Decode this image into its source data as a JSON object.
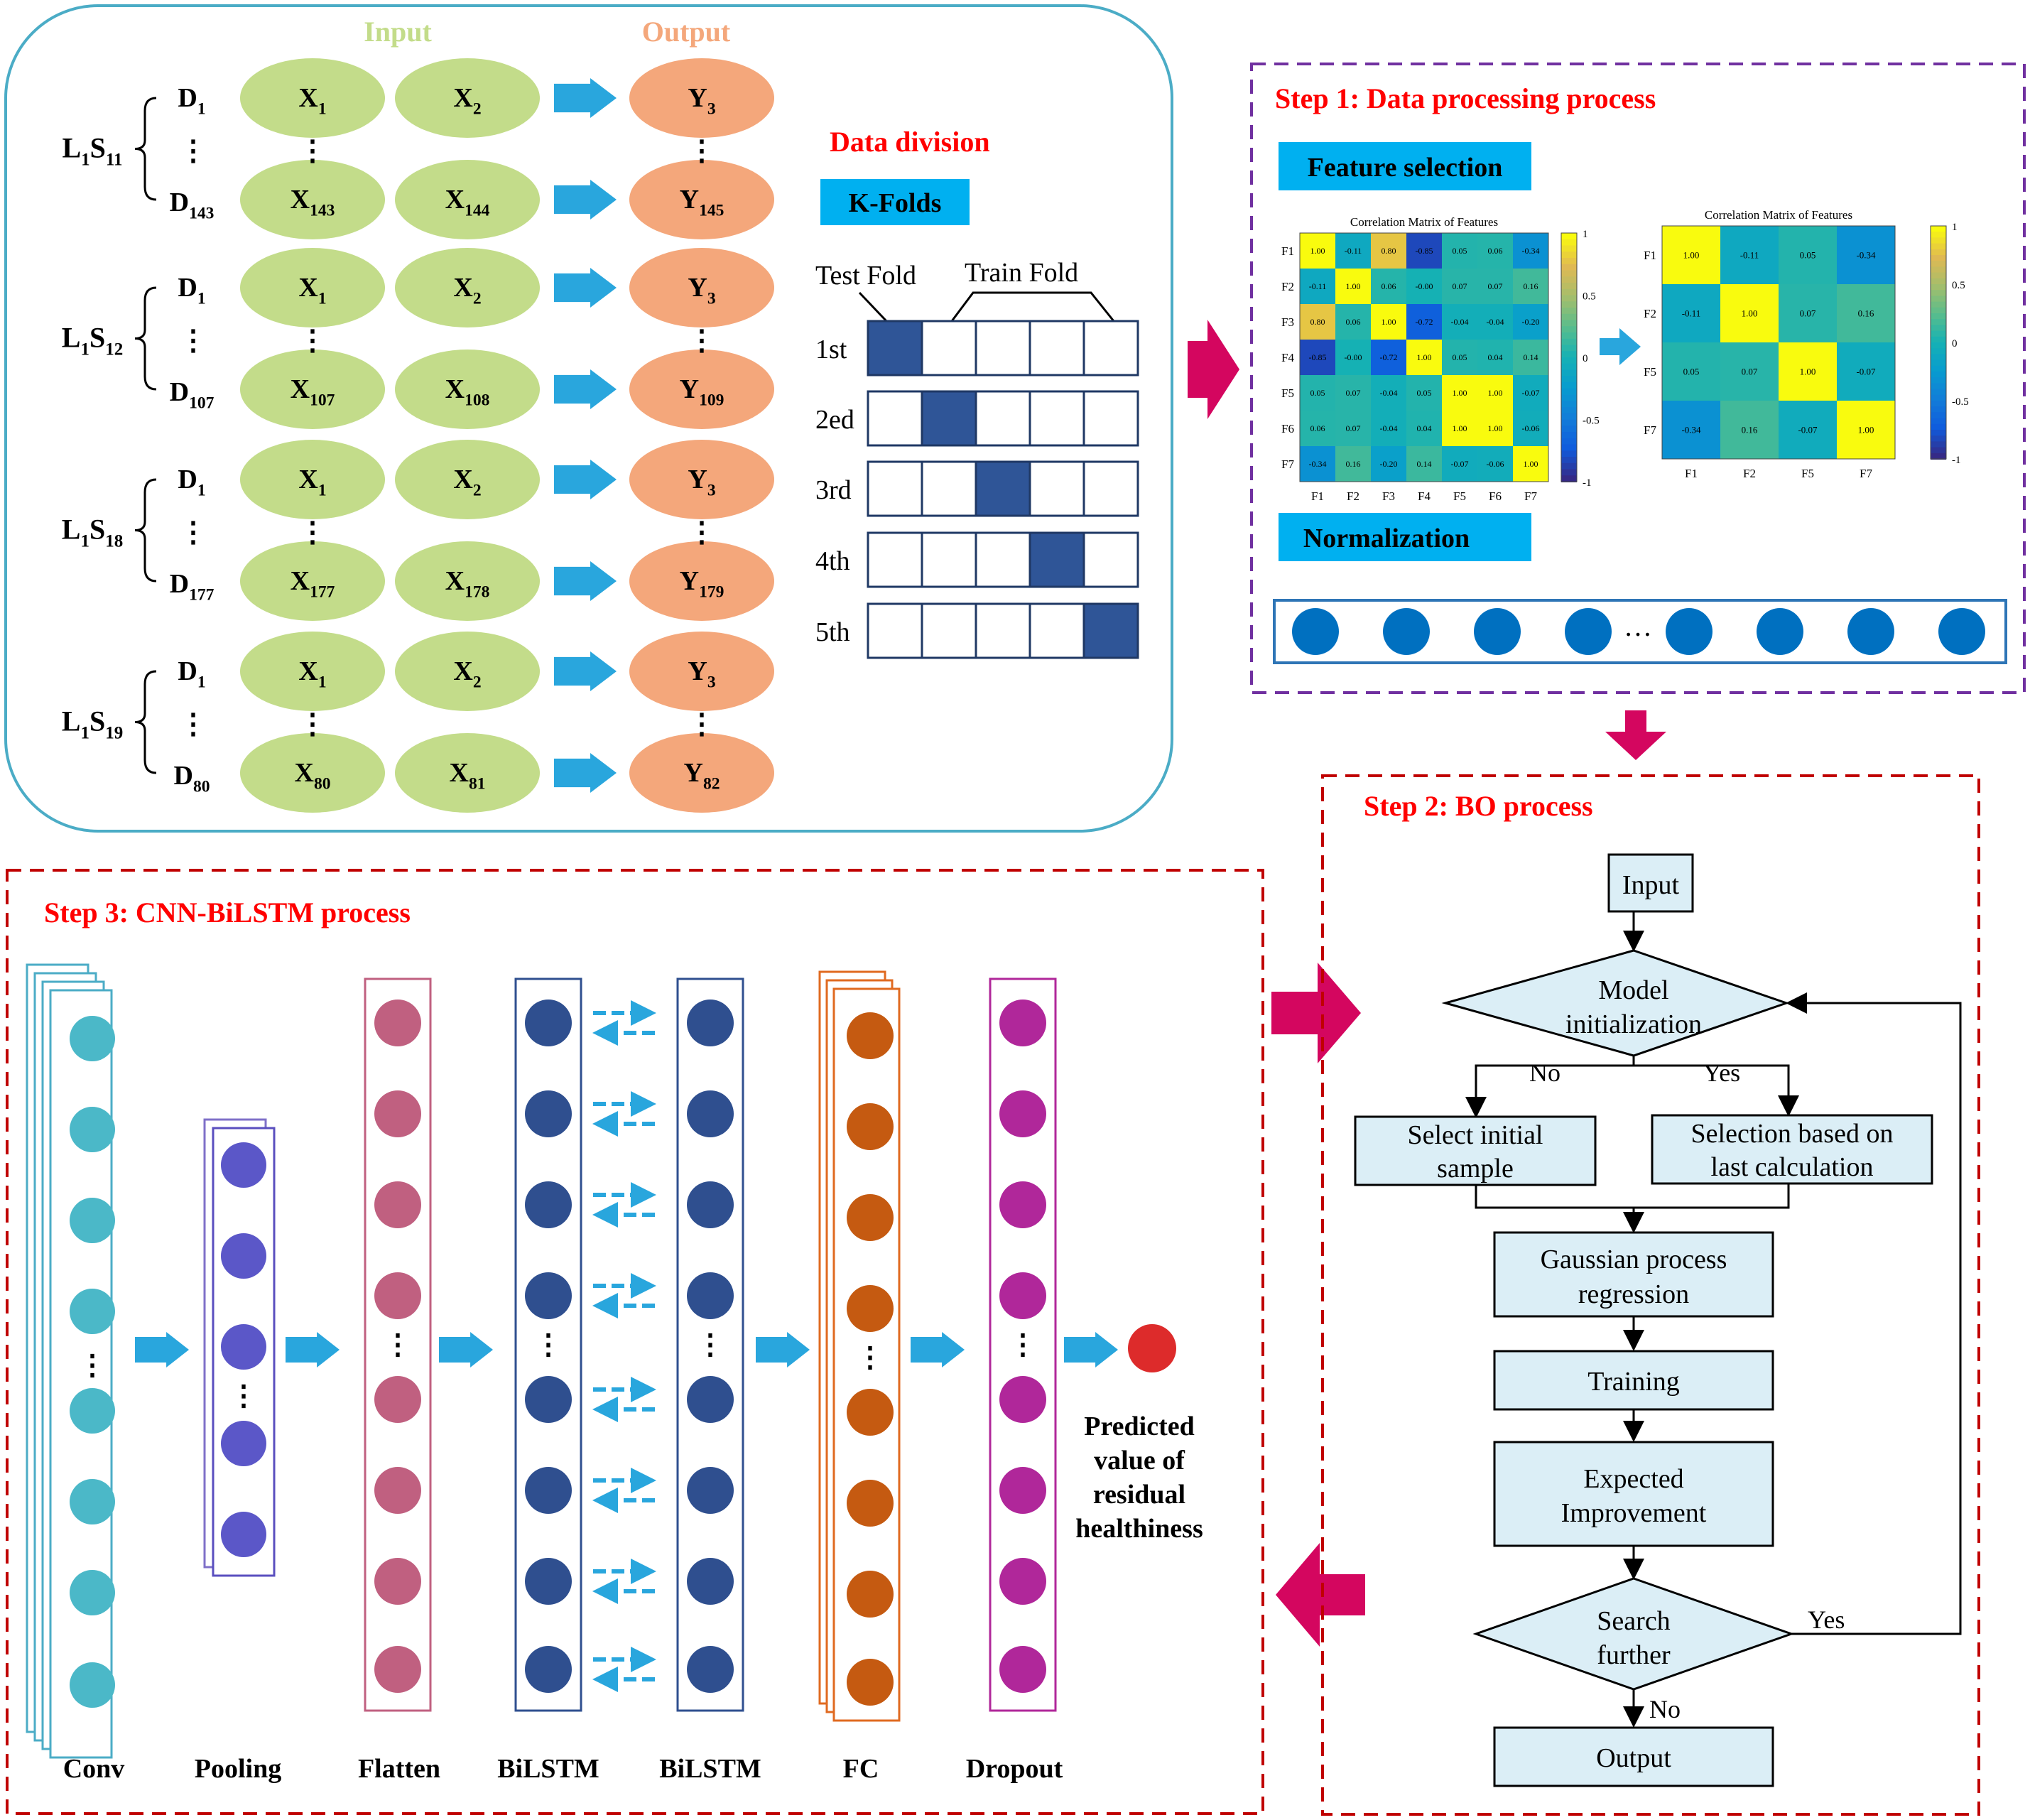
{
  "dataset": {
    "input_header": "Input",
    "output_header": "Output",
    "groups": [
      {
        "label": "L",
        "label_sub": "1",
        "label2": "S",
        "label2_sub": "11",
        "d_first": "D",
        "d_first_sub": "1",
        "d_last": "D",
        "d_last_sub": "143",
        "top": [
          {
            "t": "X",
            "s": "1"
          },
          {
            "t": "X",
            "s": "2"
          },
          {
            "t": "Y",
            "s": "3"
          }
        ],
        "bottom": [
          {
            "t": "X",
            "s": "143"
          },
          {
            "t": "X",
            "s": "144"
          },
          {
            "t": "Y",
            "s": "145"
          }
        ]
      },
      {
        "label": "L",
        "label_sub": "1",
        "label2": "S",
        "label2_sub": "12",
        "d_first": "D",
        "d_first_sub": "1",
        "d_last": "D",
        "d_last_sub": "107",
        "top": [
          {
            "t": "X",
            "s": "1"
          },
          {
            "t": "X",
            "s": "2"
          },
          {
            "t": "Y",
            "s": "3"
          }
        ],
        "bottom": [
          {
            "t": "X",
            "s": "107"
          },
          {
            "t": "X",
            "s": "108"
          },
          {
            "t": "Y",
            "s": "109"
          }
        ]
      },
      {
        "label": "L",
        "label_sub": "1",
        "label2": "S",
        "label2_sub": "18",
        "d_first": "D",
        "d_first_sub": "1",
        "d_last": "D",
        "d_last_sub": "177",
        "top": [
          {
            "t": "X",
            "s": "1"
          },
          {
            "t": "X",
            "s": "2"
          },
          {
            "t": "Y",
            "s": "3"
          }
        ],
        "bottom": [
          {
            "t": "X",
            "s": "177"
          },
          {
            "t": "X",
            "s": "178"
          },
          {
            "t": "Y",
            "s": "179"
          }
        ]
      },
      {
        "label": "L",
        "label_sub": "1",
        "label2": "S",
        "label2_sub": "19",
        "d_first": "D",
        "d_first_sub": "1",
        "d_last": "D",
        "d_last_sub": "80",
        "top": [
          {
            "t": "X",
            "s": "1"
          },
          {
            "t": "X",
            "s": "2"
          },
          {
            "t": "Y",
            "s": "3"
          }
        ],
        "bottom": [
          {
            "t": "X",
            "s": "80"
          },
          {
            "t": "X",
            "s": "81"
          },
          {
            "t": "Y",
            "s": "82"
          }
        ]
      }
    ],
    "ellipsis": "⋮"
  },
  "data_division": {
    "title": "Data division",
    "kfolds_label": "K-Folds",
    "test_fold": "Test Fold",
    "train_fold": "Train Fold",
    "folds": [
      "1st",
      "2ed",
      "3rd",
      "4th",
      "5th"
    ]
  },
  "step1": {
    "title": "Step 1: Data processing process",
    "feature_selection": "Feature selection",
    "normalization": "Normalization",
    "ellipsis": "…",
    "matrix_full": {
      "title": "Correlation Matrix of Features",
      "labels": [
        "F1",
        "F2",
        "F3",
        "F4",
        "F5",
        "F6",
        "F7"
      ],
      "values": [
        [
          "1.00",
          "-0.11",
          "0.80",
          "-0.85",
          "0.05",
          "0.06",
          "-0.34"
        ],
        [
          "-0.11",
          "1.00",
          "0.06",
          "-0.00",
          "0.07",
          "0.07",
          "0.16"
        ],
        [
          "0.80",
          "0.06",
          "1.00",
          "-0.72",
          "-0.04",
          "-0.04",
          "-0.20"
        ],
        [
          "-0.85",
          "-0.00",
          "-0.72",
          "1.00",
          "0.05",
          "0.04",
          "0.14"
        ],
        [
          "0.05",
          "0.07",
          "-0.04",
          "0.05",
          "1.00",
          "1.00",
          "-0.07"
        ],
        [
          "0.06",
          "0.07",
          "-0.04",
          "0.04",
          "1.00",
          "1.00",
          "-0.06"
        ],
        [
          "-0.34",
          "0.16",
          "-0.20",
          "0.14",
          "-0.07",
          "-0.06",
          "1.00"
        ]
      ],
      "colorbar_ticks": [
        "1",
        "0.5",
        "0",
        "-0.5",
        "-1"
      ]
    },
    "matrix_reduced": {
      "title": "Correlation Matrix of Features",
      "labels": [
        "F1",
        "F2",
        "F5",
        "F7"
      ],
      "values": [
        [
          "1.00",
          "-0.11",
          "0.05",
          "-0.34"
        ],
        [
          "-0.11",
          "1.00",
          "0.07",
          "0.16"
        ],
        [
          "0.05",
          "0.07",
          "1.00",
          "-0.07"
        ],
        [
          "-0.34",
          "0.16",
          "-0.07",
          "1.00"
        ]
      ],
      "colorbar_ticks": [
        "1",
        "0.5",
        "0",
        "-0.5",
        "-1"
      ]
    }
  },
  "step2": {
    "title": "Step 2: BO process",
    "input": "Input",
    "model_init": [
      "Model",
      "initialization"
    ],
    "no": "No",
    "yes": "Yes",
    "select_initial": [
      "Select initial",
      "sample"
    ],
    "selection_based": [
      "Selection based on",
      "last calculation"
    ],
    "gpr": [
      "Gaussian process",
      "regression"
    ],
    "training": "Training",
    "expected": [
      "Expected",
      "Improvement"
    ],
    "search": [
      "Search",
      "further"
    ],
    "yes2": "Yes",
    "no2": "No",
    "output": "Output"
  },
  "step3": {
    "title": "Step 3: CNN-BiLSTM process",
    "layers": [
      "Conv",
      "Pooling",
      "Flatten",
      "BiLSTM",
      "BiLSTM",
      "FC",
      "Dropout"
    ],
    "predicted": [
      "Predicted",
      "value of",
      "residual",
      "healthiness"
    ],
    "ellipsis": "⋮"
  },
  "colors": {
    "green_ellipse": "#c3dc8a",
    "orange_ellipse": "#f4a77b",
    "arrow_blue": "#29a6dd",
    "magenta_arrow": "#d4065f",
    "fold_fill": "#2f5597",
    "fold_border": "#1f3864",
    "label_bg": "#00b0f0",
    "red_title": "#ff0000",
    "flow_fill": "#dbeef6"
  }
}
